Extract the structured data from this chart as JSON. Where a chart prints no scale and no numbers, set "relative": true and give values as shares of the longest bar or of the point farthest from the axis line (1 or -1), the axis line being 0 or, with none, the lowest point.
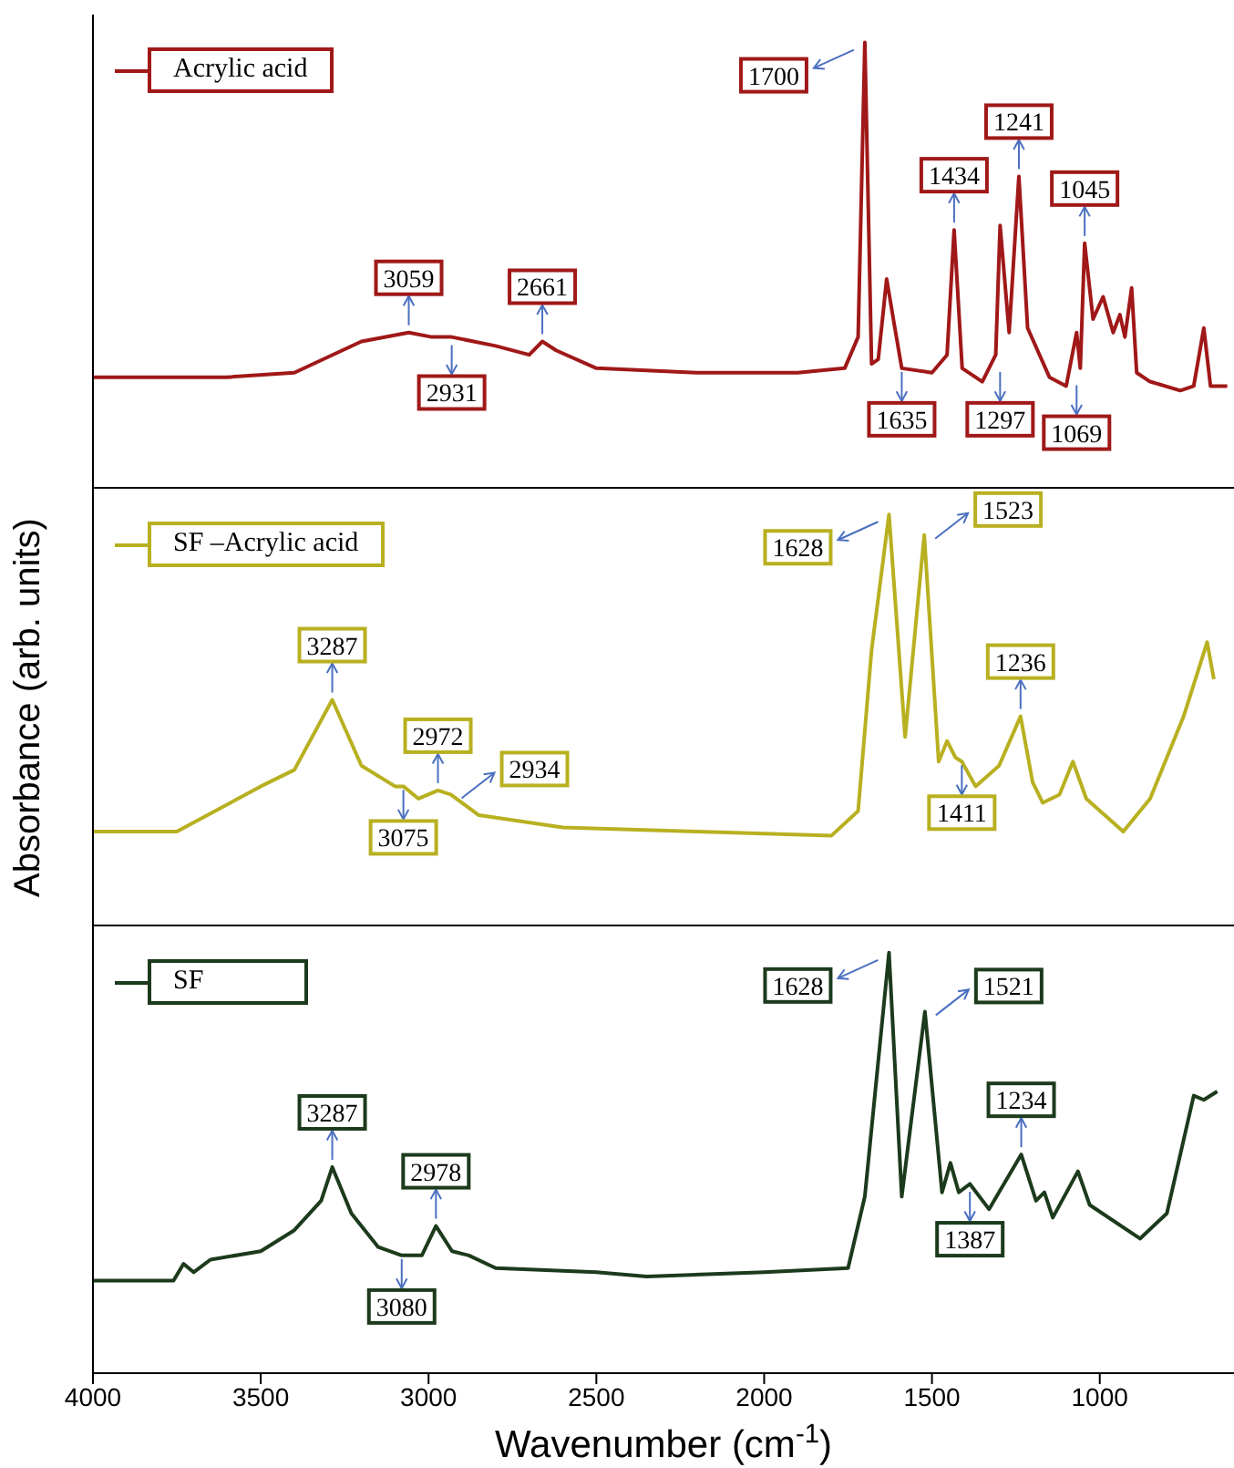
{
  "chart_data": [
    {
      "type": "line",
      "relative": true,
      "xlim": [
        4000,
        600
      ],
      "xticks": [
        4000,
        3500,
        3000,
        2500,
        2000,
        1500,
        1000
      ],
      "tick_labels": false,
      "legend": "top left",
      "x": [
        4000,
        3600,
        3400,
        3200,
        3059,
        2990,
        2931,
        2800,
        2700,
        2661,
        2620,
        2500,
        2200,
        1900,
        1760,
        1720,
        1700,
        1680,
        1660,
        1635,
        1615,
        1590,
        1500,
        1455,
        1434,
        1410,
        1350,
        1310,
        1297,
        1270,
        1241,
        1215,
        1150,
        1100,
        1069,
        1058,
        1045,
        1020,
        990,
        960,
        940,
        925,
        905,
        890,
        850,
        760,
        720,
        690,
        670,
        620
      ],
      "series": [
        {
          "name": "Acrylic acid",
          "color": "#a01818",
          "values": [
            0.25,
            0.25,
            0.26,
            0.33,
            0.35,
            0.34,
            0.34,
            0.32,
            0.3,
            0.33,
            0.31,
            0.27,
            0.26,
            0.26,
            0.27,
            0.34,
            1,
            0.28,
            0.29,
            0.47,
            0.38,
            0.27,
            0.26,
            0.3,
            0.58,
            0.27,
            0.24,
            0.3,
            0.59,
            0.35,
            0.7,
            0.36,
            0.25,
            0.23,
            0.35,
            0.27,
            0.55,
            0.38,
            0.43,
            0.35,
            0.39,
            0.34,
            0.45,
            0.26,
            0.24,
            0.22,
            0.23,
            0.36,
            0.23,
            0.23
          ]
        }
      ],
      "annotations": [
        {
          "text": "1700",
          "x": 1700,
          "y": 1
        },
        {
          "text": "3059",
          "x": 3059,
          "y": 0.35
        },
        {
          "text": "2931",
          "x": 2931,
          "y": 0.33
        },
        {
          "text": "2661",
          "x": 2661,
          "y": 0.33
        },
        {
          "text": "1635",
          "x": 1590,
          "y": 0.27
        },
        {
          "text": "1434",
          "x": 1434,
          "y": 0.58
        },
        {
          "text": "1297",
          "x": 1297,
          "y": 0.27
        },
        {
          "text": "1241",
          "x": 1241,
          "y": 0.7
        },
        {
          "text": "1045",
          "x": 1045,
          "y": 0.55
        },
        {
          "text": "1069",
          "x": 1069,
          "y": 0.24
        }
      ]
    },
    {
      "type": "line",
      "relative": true,
      "xlim": [
        4000,
        600
      ],
      "xticks": [
        4000,
        3500,
        3000,
        2500,
        2000,
        1500,
        1000
      ],
      "tick_labels": false,
      "legend": "top left",
      "ylabel": "Absorbance (arb. units)",
      "x": [
        4000,
        3800,
        3750,
        3500,
        3400,
        3287,
        3200,
        3100,
        3075,
        3030,
        2972,
        2934,
        2850,
        2600,
        2200,
        1800,
        1720,
        1680,
        1628,
        1580,
        1523,
        1480,
        1455,
        1430,
        1411,
        1370,
        1300,
        1236,
        1200,
        1170,
        1120,
        1080,
        1040,
        930,
        850,
        750,
        680,
        660
      ],
      "series": [
        {
          "name": "SF –Acrylic acid",
          "color": "#b8b020",
          "values": [
            0.23,
            0.23,
            0.23,
            0.34,
            0.38,
            0.55,
            0.39,
            0.34,
            0.34,
            0.31,
            0.33,
            0.32,
            0.27,
            0.24,
            0.23,
            0.22,
            0.28,
            0.67,
            1,
            0.46,
            0.95,
            0.4,
            0.45,
            0.41,
            0.4,
            0.34,
            0.39,
            0.51,
            0.35,
            0.3,
            0.32,
            0.4,
            0.31,
            0.23,
            0.31,
            0.51,
            0.69,
            0.6
          ]
        }
      ],
      "annotations": [
        {
          "text": "3287",
          "x": 3287,
          "y": 0.55
        },
        {
          "text": "3075",
          "x": 3075,
          "y": 0.34
        },
        {
          "text": "2972",
          "x": 2972,
          "y": 0.33
        },
        {
          "text": "2934",
          "x": 2934,
          "y": 0.32
        },
        {
          "text": "1628",
          "x": 1628,
          "y": 1
        },
        {
          "text": "1523",
          "x": 1523,
          "y": 0.95
        },
        {
          "text": "1411",
          "x": 1411,
          "y": 0.4
        },
        {
          "text": "1236",
          "x": 1236,
          "y": 0.51
        }
      ]
    },
    {
      "type": "line",
      "relative": true,
      "xlim": [
        4000,
        600
      ],
      "xticks": [
        4000,
        3500,
        3000,
        2500,
        2000,
        1500,
        1000
      ],
      "tick_labels": "x",
      "legend": "top left",
      "xlabel": "Wavenumber (cm$^{-1}$)",
      "x": [
        4000,
        3760,
        3730,
        3700,
        3650,
        3500,
        3400,
        3320,
        3287,
        3230,
        3150,
        3080,
        3020,
        2978,
        2930,
        2880,
        2800,
        2500,
        2350,
        2000,
        1750,
        1700,
        1628,
        1590,
        1521,
        1470,
        1445,
        1420,
        1387,
        1330,
        1234,
        1190,
        1165,
        1140,
        1065,
        1030,
        880,
        800,
        720,
        690,
        650
      ],
      "series": [
        {
          "name": "SF",
          "color": "#1c3a1c",
          "values": [
            0.22,
            0.22,
            0.26,
            0.24,
            0.27,
            0.29,
            0.34,
            0.41,
            0.49,
            0.38,
            0.3,
            0.28,
            0.28,
            0.35,
            0.29,
            0.28,
            0.25,
            0.24,
            0.23,
            0.24,
            0.25,
            0.42,
            1,
            0.42,
            0.86,
            0.43,
            0.5,
            0.43,
            0.45,
            0.39,
            0.52,
            0.41,
            0.43,
            0.37,
            0.48,
            0.4,
            0.32,
            0.38,
            0.66,
            0.65,
            0.67
          ]
        }
      ],
      "annotations": [
        {
          "text": "3287",
          "x": 3287,
          "y": 0.49
        },
        {
          "text": "3080",
          "x": 3080,
          "y": 0.28
        },
        {
          "text": "2978",
          "x": 2978,
          "y": 0.35
        },
        {
          "text": "1628",
          "x": 1628,
          "y": 1
        },
        {
          "text": "1521",
          "x": 1521,
          "y": 0.86
        },
        {
          "text": "1234",
          "x": 1234,
          "y": 0.52
        },
        {
          "text": "1387",
          "x": 1387,
          "y": 0.44
        }
      ]
    }
  ]
}
